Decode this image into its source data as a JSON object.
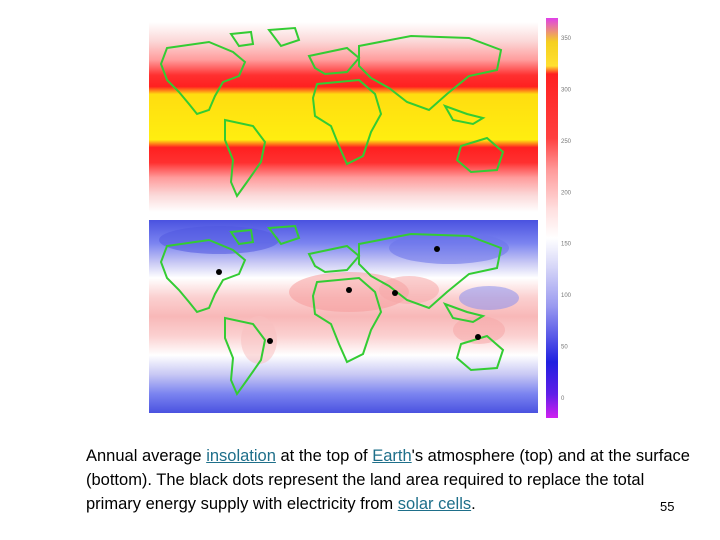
{
  "figure": {
    "panels": [
      "top",
      "bottom"
    ],
    "colorbar": {
      "tick_labels": [
        "350",
        "300",
        "250",
        "200",
        "150",
        "100",
        "50",
        "0"
      ],
      "colors_top_to_bottom": [
        "#e040e8",
        "#f5d020",
        "#ff2020",
        "#ff9a9a",
        "#ffffff",
        "#9a9af0",
        "#2020e0",
        "#b020f0"
      ]
    },
    "land_outline_color": "#33cc33",
    "dot_color": "#000000"
  },
  "caption": {
    "part1": "Annual average ",
    "link1": "insolation",
    "part2": " at the top of ",
    "link2": "Earth",
    "part3": "'s atmosphere (top) and at the surface (bottom). The black dots represent the land area required to replace the total primary energy supply with electricity from ",
    "link3": "solar cells",
    "part4": "."
  },
  "slide_number": "55"
}
